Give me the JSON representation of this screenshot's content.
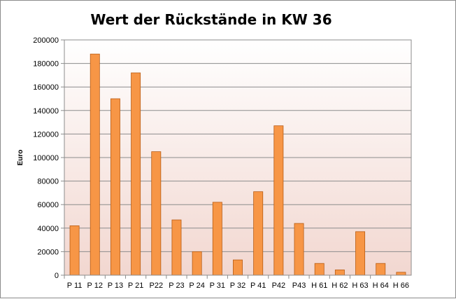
{
  "chart_data": {
    "type": "bar",
    "title": "Wert der Rückstände in KW 36",
    "xlabel": "",
    "ylabel": "Euro",
    "categories": [
      "P 11",
      "P 12",
      "P 13",
      "P 21",
      "P22",
      "P 23",
      "P 24",
      "P 31",
      "P 32",
      "P 41",
      "P42",
      "P43",
      "H 61",
      "H 62",
      "H 63",
      "H 64",
      "H 66"
    ],
    "values": [
      42000,
      188000,
      150000,
      172000,
      105000,
      47000,
      20000,
      62000,
      13000,
      71000,
      127000,
      44000,
      10000,
      4500,
      37000,
      10000,
      2500
    ],
    "ylim": [
      0,
      200000
    ],
    "yticks": [
      "0",
      "20000",
      "40000",
      "60000",
      "80000",
      "100000",
      "120000",
      "140000",
      "160000",
      "180000",
      "200000"
    ],
    "grid": true,
    "legend": "none",
    "colors": {
      "bar_fill": "#f79646",
      "bar_stroke": "#b85c14",
      "plot_background_top": "#ffffff",
      "plot_background_bottom": "#f2d7d0",
      "gridline": "#8c8c8c",
      "axis": "#8c8c8c"
    }
  }
}
